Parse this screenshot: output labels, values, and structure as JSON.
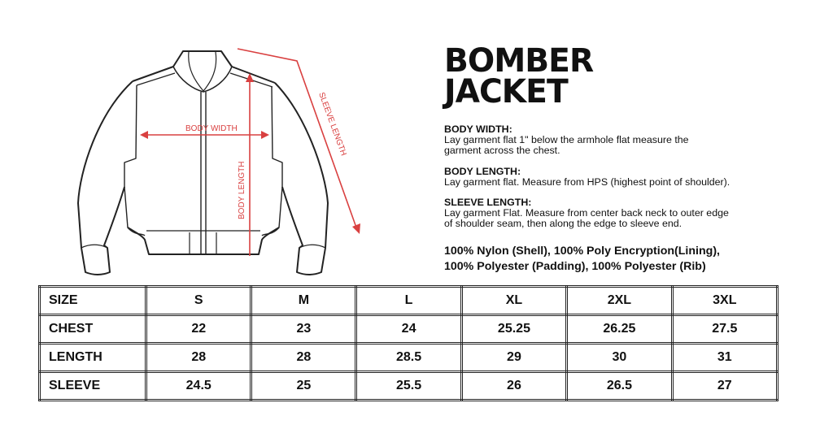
{
  "title": {
    "line1": "BOMBER",
    "line2": "JACKET"
  },
  "diagram": {
    "body_width_label": "BODY WIDTH",
    "body_length_label": "BODY LENGTH",
    "sleeve_length_label": "SLEEVE LENGTH",
    "arrow_color": "#d94040"
  },
  "instructions": [
    {
      "heading": "BODY WIDTH:",
      "text": "Lay garment flat 1\" below the armhole flat measure the garment across the chest."
    },
    {
      "heading": "BODY LENGTH:",
      "text": "Lay garment flat. Measure from HPS (highest point of shoulder)."
    },
    {
      "heading": "SLEEVE LENGTH:",
      "text": "Lay garment Flat. Measure from center back neck to outer edge of shoulder seam, then along the edge to sleeve end."
    }
  ],
  "fabric": {
    "line1": "100% Nylon (Shell), 100% Poly Encryption(Lining),",
    "line2": "100% Polyester (Padding), 100% Polyester (Rib)"
  },
  "size_table": {
    "header": [
      "SIZE",
      "S",
      "M",
      "L",
      "XL",
      "2XL",
      "3XL"
    ],
    "rows": [
      [
        "CHEST",
        "22",
        "23",
        "24",
        "25.25",
        "26.25",
        "27.5"
      ],
      [
        "LENGTH",
        "28",
        "28",
        "28.5",
        "29",
        "30",
        "31"
      ],
      [
        "SLEEVE",
        "24.5",
        "25",
        "25.5",
        "26",
        "26.5",
        "27"
      ]
    ]
  }
}
